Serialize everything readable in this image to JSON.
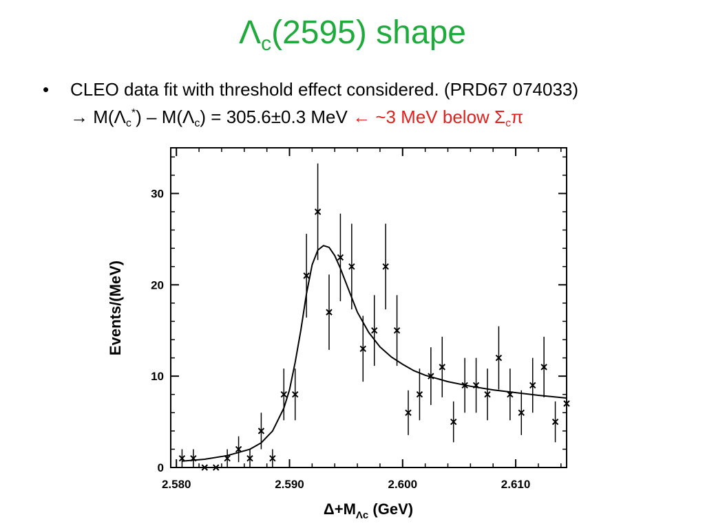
{
  "colors": {
    "title": "#1faa3c",
    "highlight": "#e0201b",
    "text": "#000000"
  },
  "slide": {
    "title_main": "Λ",
    "title_sub": "c",
    "title_rest": "(2595) shape",
    "bullet_icon": "bullet-dot",
    "bullet_line1": "CLEO data fit with threshold effect considered. (PRD67 074033)",
    "arrow_right": "→",
    "eq_m1": "M(Λ",
    "eq_sub1": "c",
    "eq_sup1": "*",
    "eq_mid": ") – M(Λ",
    "eq_sub2": "c",
    "eq_value": ") = 305.6±0.3 MeV",
    "arrow_left": "←",
    "note_text": " ~3 MeV below Σ",
    "note_sub": "c",
    "note_pi": "π"
  },
  "chart_data": {
    "type": "scatter",
    "xlabel_main": "Δ+M",
    "xlabel_sub": "Λc",
    "xlabel_unit": " (GeV)",
    "ylabel": "Events/(MeV)",
    "xlim": [
      2.5795,
      2.6145
    ],
    "ylim": [
      0,
      35
    ],
    "xticks": [
      2.58,
      2.59,
      2.6,
      2.61
    ],
    "xtick_labels": [
      "2.580",
      "2.590",
      "2.600",
      "2.610"
    ],
    "yticks": [
      0,
      10,
      20,
      30
    ],
    "ytick_labels": [
      "0",
      "10",
      "20",
      "30"
    ],
    "grid": false,
    "series": [
      {
        "kind": "points",
        "x": [
          2.5805,
          2.5815,
          2.5825,
          2.5835,
          2.5845,
          2.5855,
          2.5865,
          2.5875,
          2.5885,
          2.5895,
          2.5905,
          2.5915,
          2.5925,
          2.5935,
          2.5945,
          2.5955,
          2.5965,
          2.5975,
          2.5985,
          2.5995,
          2.6005,
          2.6015,
          2.6025,
          2.6035,
          2.6045,
          2.6055,
          2.6065,
          2.6075,
          2.6085,
          2.6095,
          2.6105,
          2.6115,
          2.6125,
          2.6135,
          2.6145
        ],
        "y": [
          1,
          1,
          0,
          0,
          1,
          2,
          1,
          4,
          1,
          8,
          8,
          21,
          28,
          17,
          23,
          22,
          13,
          15,
          22,
          15,
          6,
          8,
          10,
          11,
          5,
          9,
          9,
          8,
          12,
          8,
          6,
          9,
          11,
          5,
          7
        ]
      },
      {
        "kind": "fit",
        "x": [
          2.5805,
          2.5825,
          2.5845,
          2.5865,
          2.5875,
          2.5885,
          2.5895,
          2.59,
          2.5905,
          2.591,
          2.5915,
          2.592,
          2.5925,
          2.593,
          2.5935,
          2.594,
          2.5945,
          2.595,
          2.596,
          2.597,
          2.598,
          2.599,
          2.6,
          2.601,
          2.602,
          2.604,
          2.606,
          2.608,
          2.61,
          2.612,
          2.6145
        ],
        "y": [
          0.7,
          0.9,
          1.3,
          2.0,
          2.7,
          4.0,
          6.5,
          8.5,
          11.5,
          15.0,
          19.0,
          22.2,
          23.8,
          24.3,
          24.1,
          23.2,
          21.8,
          20.2,
          17.0,
          14.8,
          13.2,
          12.1,
          11.3,
          10.6,
          10.1,
          9.4,
          8.9,
          8.5,
          8.2,
          7.9,
          7.6
        ]
      }
    ]
  }
}
